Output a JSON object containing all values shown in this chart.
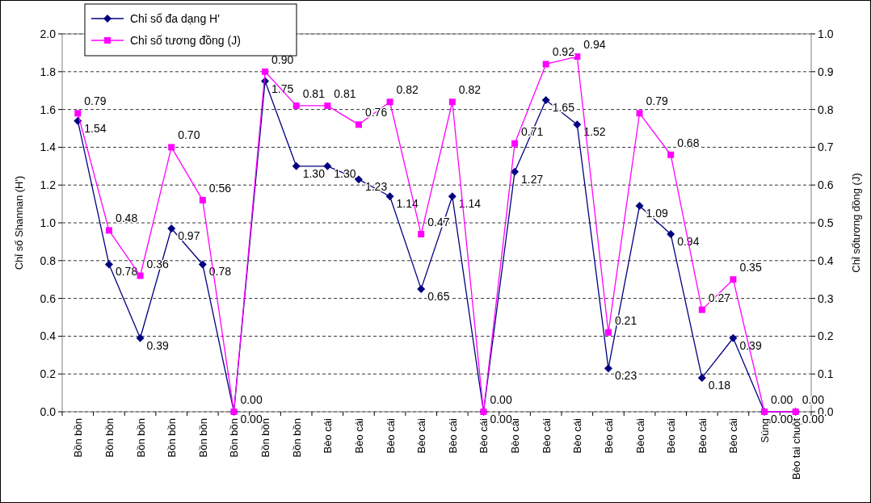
{
  "chart_data": {
    "type": "line",
    "xlabel": null,
    "ylabel": "Chỉ số Shannan (H')",
    "y2label": "Chỉ sốtương đồng (J)",
    "categories": [
      "Bồn bồn",
      "Bồn bồn",
      "Bồn bồn",
      "Bồn bồn",
      "Bồn bồn",
      "Bồn bồn",
      "Bồn bồn",
      "Bồn bồn",
      "Bèo cái",
      "Bèo cái",
      "Bèo cái",
      "Bèo cái",
      "Bèo cái",
      "Bèo cái",
      "Bèo cái",
      "Bèo cái",
      "Bèo cái",
      "Bèo cái",
      "Bèo cái",
      "Bèo cái",
      "Bèo cái",
      "Bèo cái",
      "Súng",
      "Bèo tai chuột"
    ],
    "series": [
      {
        "name": "Chỉ số đa dạng H'",
        "color": "#000080",
        "marker": "diamond",
        "values": [
          1.54,
          0.78,
          0.39,
          0.97,
          0.78,
          0,
          1.75,
          1.3,
          1.3,
          1.23,
          1.14,
          0.65,
          1.14,
          0,
          1.27,
          1.65,
          1.52,
          0.23,
          1.09,
          0.94,
          0.18,
          0.39,
          0,
          0
        ],
        "value_labels": [
          "1.54",
          "0.78",
          "0.39",
          "0.97",
          "0.78",
          "0.00",
          "1.75",
          "1.30",
          "1.30",
          "1.23",
          "1.14",
          "0.65",
          "1.14",
          "0.00",
          "1.27",
          "1.65",
          "1.52",
          "0.23",
          "1.09",
          "0.94",
          "0.18",
          "0.39",
          "0.00",
          "0.00"
        ]
      },
      {
        "name": "Chỉ số tương đồng (J)",
        "color": "#ff00ff",
        "marker": "square",
        "axis": "y2",
        "values": [
          0.79,
          0.48,
          0.36,
          0.7,
          0.56,
          0,
          0.9,
          0.81,
          0.81,
          0.76,
          0.82,
          0.47,
          0.82,
          0,
          0.71,
          0.92,
          0.94,
          0.21,
          0.79,
          0.68,
          0.27,
          0.35,
          0,
          0
        ],
        "value_labels": [
          "0.79",
          "0.48",
          "0.36",
          "0.70",
          "0.56",
          "0.00",
          "0.90",
          "0.81",
          "0.81",
          "0.76",
          "0.82",
          "0.47",
          "0.82",
          "0.00",
          "0.71",
          "0.92",
          "0.94",
          "0.21",
          "0.79",
          "0.68",
          "0.27",
          "0.35",
          "0.00",
          "0.00"
        ]
      }
    ],
    "ylim": [
      0,
      2
    ],
    "yticks": [
      {
        "value": 0,
        "label": "0.0"
      },
      0.2,
      0.4,
      0.6,
      0.8,
      {
        "value": 1,
        "label": "1.0"
      },
      1.2,
      1.4,
      1.6,
      1.8,
      {
        "value": 2,
        "label": "2.0"
      }
    ],
    "y2lim": [
      0,
      1
    ],
    "y2ticks": [
      {
        "value": 0,
        "label": "0.0"
      },
      0.1,
      0.2,
      0.3,
      0.4,
      0.5,
      0.6,
      0.7,
      0.8,
      0.9,
      {
        "value": 1,
        "label": "1.0"
      }
    ],
    "grid": "y",
    "legend": "top left",
    "line_style": "solid"
  }
}
